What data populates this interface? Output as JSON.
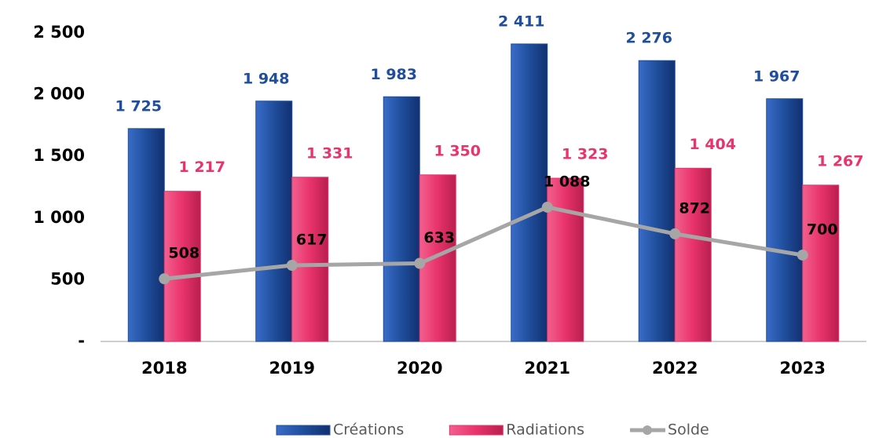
{
  "chart_data": {
    "type": "bar",
    "categories": [
      "2018",
      "2019",
      "2020",
      "2021",
      "2022",
      "2023"
    ],
    "series": [
      {
        "name": "Créations",
        "type": "bar",
        "color": "#1f4e9c",
        "values": [
          1725,
          1948,
          1983,
          2411,
          2276,
          1967
        ],
        "value_labels": [
          "1 725",
          "1 948",
          "1 983",
          "2 411",
          "2 276",
          "1 967"
        ]
      },
      {
        "name": "Radiations",
        "type": "bar",
        "color": "#e8336b",
        "values": [
          1217,
          1331,
          1350,
          1323,
          1404,
          1267
        ],
        "value_labels": [
          "1 217",
          "1 331",
          "1 350",
          "1 323",
          "1 404",
          "1 267"
        ]
      },
      {
        "name": "Solde",
        "type": "line",
        "color": "#a6a6a6",
        "values": [
          508,
          617,
          633,
          1088,
          872,
          700
        ],
        "value_labels": [
          "508",
          "617",
          "633",
          "1 088",
          "872",
          "700"
        ]
      }
    ],
    "ylim": [
      0,
      2500
    ],
    "yticks": [
      {
        "value": 0,
        "label": "-"
      },
      500,
      {
        "value": 1000,
        "label": "1 000"
      },
      {
        "value": 1500,
        "label": "1 500"
      },
      {
        "value": 2000,
        "label": "2 000"
      },
      {
        "value": 2500,
        "label": "2 500"
      }
    ],
    "grid": false,
    "legend": "bottom"
  }
}
